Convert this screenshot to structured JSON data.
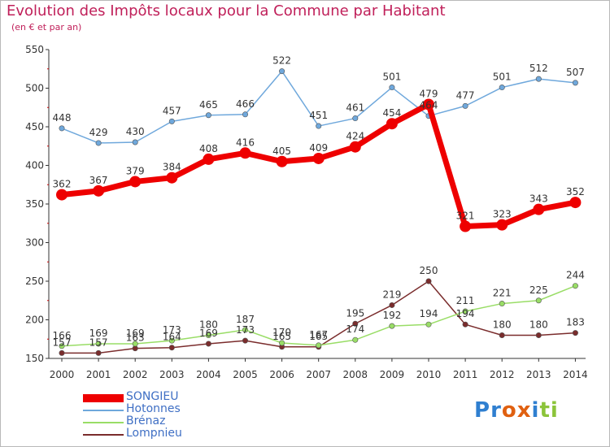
{
  "title": "Evolution des Impôts locaux pour la Commune par Habitant",
  "subtitle": "(en € et par an)",
  "logo": {
    "text": "Proxiti",
    "letters": [
      "P",
      "r",
      "o",
      "x",
      "i",
      "t",
      "i"
    ],
    "colors": [
      "#2f7fd0",
      "#2f7fd0",
      "#e06010",
      "#e06010",
      "#2f7fd0",
      "#8cc43a",
      "#8cc43a"
    ]
  },
  "chart_data": {
    "type": "line",
    "x": [
      "2000",
      "2001",
      "2002",
      "2003",
      "2004",
      "2005",
      "2006",
      "2007",
      "2008",
      "2009",
      "2010",
      "2011",
      "2012",
      "2013",
      "2014"
    ],
    "ylim": [
      150,
      550
    ],
    "yticks": [
      150,
      200,
      250,
      300,
      350,
      400,
      450,
      500,
      550
    ],
    "grid": false,
    "legend_position": "bottom-left",
    "series": [
      {
        "name": "SONGIEU",
        "color": "#ee0000",
        "values": [
          362,
          367,
          379,
          384,
          408,
          416,
          405,
          409,
          424,
          454,
          479,
          321,
          323,
          343,
          352
        ],
        "labels": [
          "362",
          "367",
          "379",
          "384",
          "408",
          "416",
          "405",
          "409",
          "424",
          "454",
          "479",
          "321",
          "323",
          "343",
          "352"
        ]
      },
      {
        "name": "Hotonnes",
        "color": "#6fa8dc",
        "values": [
          448,
          429,
          430,
          457,
          465,
          466,
          522,
          451,
          461,
          501,
          464,
          477,
          501,
          512,
          507
        ],
        "labels": [
          "448",
          "429",
          "430",
          "457",
          "465",
          "466",
          "522",
          "451",
          "461",
          "501",
          "464",
          "477",
          "501",
          "512",
          "507"
        ]
      },
      {
        "name": "Brénaz",
        "color": "#99dd66",
        "values": [
          166,
          169,
          169,
          173,
          180,
          187,
          170,
          167,
          174,
          192,
          194,
          211,
          221,
          225,
          244
        ],
        "labels": [
          "166",
          "169",
          "169",
          "173",
          "180",
          "187",
          "170",
          "167",
          "174",
          "192",
          "194",
          "211",
          "221",
          "225",
          "244"
        ]
      },
      {
        "name": "Lompnieu",
        "color": "#7a2c2c",
        "values": [
          157,
          157,
          163,
          164,
          169,
          173,
          165,
          165,
          195,
          219,
          250,
          194,
          180,
          180,
          183
        ],
        "labels": [
          "157",
          "157",
          "163",
          "164",
          "169",
          "173",
          "165",
          "165",
          "195",
          "219",
          "250",
          "194",
          "180",
          "180",
          "183"
        ]
      }
    ]
  }
}
